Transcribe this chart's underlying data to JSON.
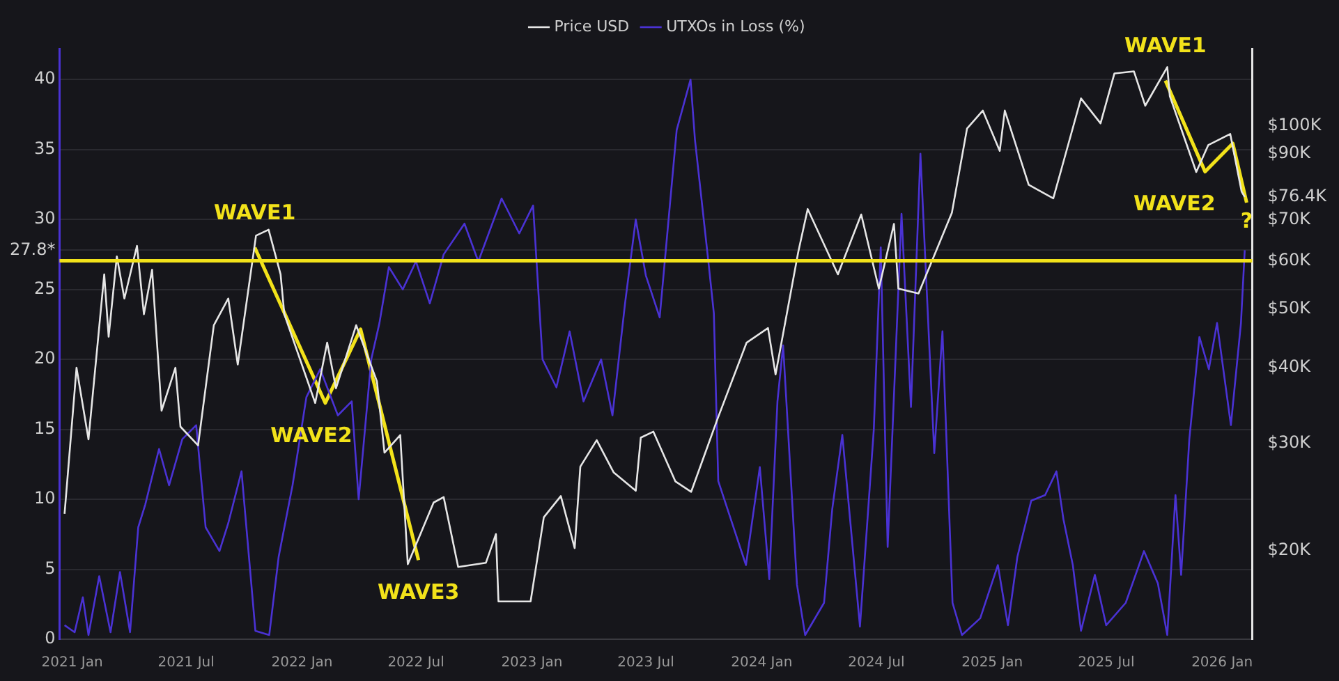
{
  "chart_data": {
    "type": "line",
    "xlim": [
      "2020-12-12",
      "2026-02-18"
    ],
    "xticks": [
      {
        "value": "2021-01-01",
        "label": "2021 Jan"
      },
      {
        "value": "2021-07-01",
        "label": "2021 Jul"
      },
      {
        "value": "2022-01-01",
        "label": "2022 Jan"
      },
      {
        "value": "2022-07-01",
        "label": "2022 Jul"
      },
      {
        "value": "2023-01-01",
        "label": "2023 Jan"
      },
      {
        "value": "2023-07-01",
        "label": "2023 Jul"
      },
      {
        "value": "2024-01-01",
        "label": "2024 Jan"
      },
      {
        "value": "2024-07-01",
        "label": "2024 Jul"
      },
      {
        "value": "2025-01-01",
        "label": "2025 Jan"
      },
      {
        "value": "2025-07-01",
        "label": "2025 Jul"
      },
      {
        "value": "2026-01-01",
        "label": "2026 Jan"
      }
    ],
    "ylim": [
      0,
      42.2
    ],
    "yticks": [
      0,
      5,
      10,
      15,
      20,
      25,
      {
        "value": 27.8,
        "label": "27.8*"
      },
      30,
      35,
      40
    ],
    "y2lim": [
      14300,
      134000
    ],
    "y2ticks": [
      {
        "value": 20000,
        "label": "$20K"
      },
      {
        "value": 30000,
        "label": "$30K"
      },
      {
        "value": 40000,
        "label": "$40K"
      },
      {
        "value": 50000,
        "label": "$50K"
      },
      {
        "value": 60000,
        "label": "$60K"
      },
      {
        "value": 70000,
        "label": "$70K"
      },
      {
        "value": 76400,
        "label": "$76.4K"
      },
      {
        "value": 90000,
        "label": "$90K"
      },
      {
        "value": 100000,
        "label": "$100K"
      }
    ],
    "log": "y2",
    "grid": "y",
    "legend": "top",
    "marker": "none",
    "series": [
      {
        "name": "Price USD",
        "color": "#e6e6e6",
        "axis": "y2",
        "x": [
          "2020-12-20",
          "2021-01-08",
          "2021-01-27",
          "2021-02-21",
          "2021-02-28",
          "2021-03-13",
          "2021-03-25",
          "2021-04-14",
          "2021-04-25",
          "2021-05-08",
          "2021-05-23",
          "2021-06-14",
          "2021-06-22",
          "2021-07-20",
          "2021-08-14",
          "2021-09-06",
          "2021-09-21",
          "2021-10-20",
          "2021-11-09",
          "2021-11-28",
          "2021-12-04",
          "2022-01-22",
          "2022-02-10",
          "2022-02-24",
          "2022-03-28",
          "2022-04-30",
          "2022-05-12",
          "2022-06-06",
          "2022-06-18",
          "2022-07-29",
          "2022-08-14",
          "2022-09-06",
          "2022-10-20",
          "2022-11-05",
          "2022-11-09",
          "2022-12-30",
          "2023-01-20",
          "2023-02-16",
          "2023-03-10",
          "2023-03-19",
          "2023-04-14",
          "2023-05-11",
          "2023-06-15",
          "2023-06-23",
          "2023-07-13",
          "2023-08-17",
          "2023-09-11",
          "2023-10-23",
          "2023-12-08",
          "2024-01-11",
          "2024-01-23",
          "2024-02-28",
          "2024-03-14",
          "2024-05-01",
          "2024-06-07",
          "2024-07-05",
          "2024-07-29",
          "2024-08-05",
          "2024-09-06",
          "2024-10-29",
          "2024-11-22",
          "2024-12-17",
          "2025-01-13",
          "2025-01-21",
          "2025-02-28",
          "2025-04-08",
          "2025-05-22",
          "2025-06-22",
          "2025-07-14",
          "2025-08-14",
          "2025-09-01",
          "2025-10-06",
          "2025-10-10",
          "2025-11-21",
          "2025-12-10",
          "2026-01-14",
          "2026-02-01",
          "2026-02-06"
        ],
        "values": [
          23000,
          40000,
          30500,
          57000,
          45000,
          61000,
          52000,
          63500,
          49000,
          58000,
          34000,
          40000,
          32000,
          29800,
          47000,
          52000,
          40500,
          66000,
          67500,
          57000,
          49000,
          35000,
          44000,
          37000,
          47000,
          38000,
          29000,
          31000,
          19000,
          24000,
          24500,
          18800,
          19100,
          21300,
          16500,
          16500,
          22700,
          24600,
          20200,
          27500,
          30400,
          26900,
          25100,
          30700,
          31400,
          26000,
          25000,
          33000,
          44000,
          46500,
          39000,
          62000,
          73000,
          57000,
          71500,
          54000,
          69000,
          54000,
          53000,
          72000,
          99000,
          106000,
          91000,
          106000,
          80000,
          76000,
          111000,
          101000,
          122000,
          123000,
          108000,
          125000,
          112000,
          84000,
          93000,
          97000,
          78000,
          76400
        ]
      },
      {
        "name": "UTXOs in Loss (%)",
        "color": "#4a32d4",
        "axis": "y",
        "x": [
          "2020-12-20",
          "2021-01-05",
          "2021-01-18",
          "2021-01-27",
          "2021-02-13",
          "2021-03-03",
          "2021-03-18",
          "2021-04-03",
          "2021-04-16",
          "2021-04-27",
          "2021-05-19",
          "2021-06-04",
          "2021-06-25",
          "2021-07-17",
          "2021-08-01",
          "2021-08-23",
          "2021-09-06",
          "2021-09-27",
          "2021-10-19",
          "2021-11-10",
          "2021-11-25",
          "2021-12-17",
          "2022-01-08",
          "2022-01-30",
          "2022-02-27",
          "2022-03-21",
          "2022-04-01",
          "2022-04-21",
          "2022-05-04",
          "2022-05-19",
          "2022-06-10",
          "2022-07-01",
          "2022-07-23",
          "2022-08-14",
          "2022-09-16",
          "2022-10-08",
          "2022-11-14",
          "2022-12-12",
          "2023-01-03",
          "2023-01-18",
          "2023-02-09",
          "2023-03-02",
          "2023-03-24",
          "2023-04-21",
          "2023-05-09",
          "2023-05-29",
          "2023-06-15",
          "2023-07-01",
          "2023-07-23",
          "2023-08-19",
          "2023-09-10",
          "2023-09-17",
          "2023-10-09",
          "2023-10-17",
          "2023-10-24",
          "2023-12-07",
          "2023-12-29",
          "2024-01-13",
          "2024-01-26",
          "2024-02-04",
          "2024-02-26",
          "2024-03-10",
          "2024-04-09",
          "2024-04-22",
          "2024-05-08",
          "2024-06-05",
          "2024-06-27",
          "2024-07-08",
          "2024-07-19",
          "2024-08-10",
          "2024-08-25",
          "2024-09-09",
          "2024-10-01",
          "2024-10-14",
          "2024-10-30",
          "2024-11-14",
          "2024-12-13",
          "2025-01-10",
          "2025-01-26",
          "2025-02-10",
          "2025-03-04",
          "2025-03-26",
          "2025-04-13",
          "2025-04-24",
          "2025-05-09",
          "2025-05-22",
          "2025-06-13",
          "2025-07-01",
          "2025-08-01",
          "2025-08-30",
          "2025-09-21",
          "2025-10-06",
          "2025-10-19",
          "2025-10-28",
          "2025-11-10",
          "2025-11-26",
          "2025-12-11",
          "2025-12-24",
          "2026-01-15",
          "2026-01-31",
          "2026-02-06"
        ],
        "values": [
          1,
          0.5,
          3,
          0.3,
          4.5,
          0.5,
          4.8,
          0.5,
          8,
          9.6,
          13.6,
          11,
          14.3,
          15.3,
          8,
          6.3,
          8.3,
          12,
          0.6,
          0.3,
          5.9,
          11,
          17.3,
          19.3,
          16,
          17,
          10,
          20,
          22.6,
          26.6,
          25,
          27,
          24,
          27.5,
          29.7,
          27,
          31.5,
          29,
          31,
          20,
          18,
          22,
          17,
          20,
          16,
          24,
          30,
          26,
          23,
          36.4,
          40,
          35.7,
          26.7,
          23.3,
          11.3,
          5.3,
          12.3,
          4.3,
          17,
          21,
          3.9,
          0.3,
          2.6,
          9.3,
          14.6,
          0.9,
          15,
          28,
          6.6,
          30.4,
          16.6,
          34.7,
          13.3,
          22,
          2.6,
          0.3,
          1.5,
          5.3,
          1,
          5.9,
          9.9,
          10.3,
          12,
          8.6,
          5.3,
          0.6,
          4.6,
          1,
          2.6,
          6.3,
          4,
          0.3,
          10.3,
          4.6,
          14.3,
          21.6,
          19.3,
          22.6,
          15.3,
          22.6,
          27.8
        ]
      },
      {
        "color": "#f2e21a",
        "axis": "y2",
        "x": [
          "2021-10-18",
          "2022-02-07",
          "2022-04-04",
          "2022-07-05",
          "2023-01-01",
          "2025-10-03",
          "2025-12-05",
          "2026-01-18",
          "2026-02-09"
        ],
        "values": [
          63100,
          35000,
          46300,
          19300,
          null,
          118800,
          84100,
          93600,
          74800
        ]
      }
    ],
    "ref_lines": [
      {
        "axis": "y2",
        "value": 60000,
        "color": "#f2e21a"
      }
    ],
    "annotations": [
      "WAVE1",
      "WAVE2",
      "WAVE3",
      "WAVE1",
      "WAVE2",
      "?"
    ]
  }
}
